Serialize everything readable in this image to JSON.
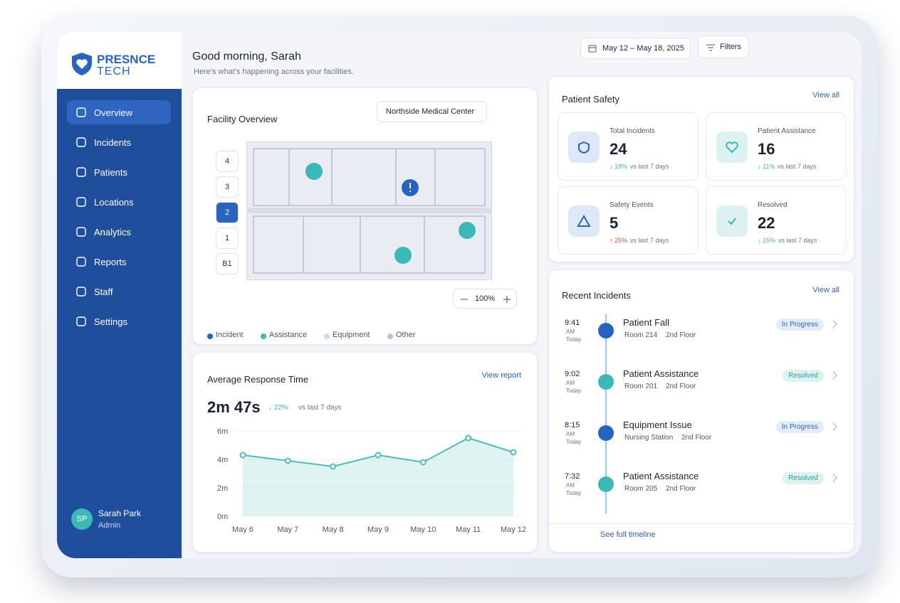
{
  "brand": {
    "name": "PRESNCE",
    "sub": "TECH"
  },
  "nav": [
    "Overview",
    "Incidents",
    "Patients",
    "Locations",
    "Analytics",
    "Reports",
    "Staff",
    "Settings"
  ],
  "nav_active": 0,
  "user": {
    "initials": "SP",
    "name": "Sarah Park",
    "role": "Admin"
  },
  "header": {
    "greeting": "Good morning, Sarah",
    "subtitle": "Here's what's happening across your facilities.",
    "date_range": "May 12 – May 18, 2025",
    "filters": "Filters"
  },
  "facility": {
    "title": "Facility Overview",
    "building": "Northside Medical Center",
    "floors": [
      "4",
      "3",
      "2",
      "1",
      "B1"
    ],
    "active_floor": 2,
    "zoom": "100%",
    "legend": [
      {
        "label": "Incident",
        "color": "#2563c4"
      },
      {
        "label": "Assistance",
        "color": "#3bb9b6"
      },
      {
        "label": "Equipment",
        "color": "#bfe6e6"
      },
      {
        "label": "Other",
        "color": "#b9bfe0"
      }
    ]
  },
  "safety": {
    "title": "Patient Safety",
    "view_all": "View all",
    "cards": [
      {
        "label": "Total Incidents",
        "value": 24,
        "change": "↓ 18%",
        "note": "vs last 7 days",
        "tone": "good",
        "icon": "shield"
      },
      {
        "label": "Patient Assistance",
        "value": 16,
        "change": "↓ 11%",
        "note": "vs last 7 days",
        "tone": "good",
        "icon": "heart"
      },
      {
        "label": "Safety Events",
        "value": 5,
        "change": "↑ 25%",
        "note": "vs last 7 days",
        "tone": "bad",
        "icon": "warn"
      },
      {
        "label": "Resolved",
        "value": 22,
        "change": "↓ 15%",
        "note": "vs last 7 days",
        "tone": "good",
        "icon": "check"
      }
    ]
  },
  "chart_data": {
    "type": "line",
    "title": "Average Response Time",
    "link": "View report",
    "summary": "2m 47s",
    "change": "↓ 22%",
    "change_note": "vs last 7 days",
    "categories": [
      "May 6",
      "May 7",
      "May 8",
      "May 9",
      "May 10",
      "May 11",
      "May 12"
    ],
    "series": [
      {
        "name": "Average Response Time",
        "color": "#4dbdb8",
        "values": [
          4.3,
          3.9,
          3.5,
          4.3,
          3.8,
          5.5,
          4.5
        ]
      }
    ],
    "ylim": [
      0,
      6
    ],
    "yticks": [
      {
        "value": 0,
        "label": "0m"
      },
      {
        "value": 2,
        "label": "2m"
      },
      {
        "value": 4,
        "label": "4m"
      },
      {
        "value": 6,
        "label": "6m"
      }
    ]
  },
  "recent": {
    "title": "Recent Incidents",
    "view_all": "View all",
    "footer": "See full timeline",
    "items": [
      {
        "time": "9:41",
        "ampm": "AM",
        "day": "Today",
        "title": "Patient Fall",
        "room": "Room 214",
        "floor": "2nd Floor",
        "status": "In Progress",
        "kind": "incident"
      },
      {
        "time": "9:02",
        "ampm": "AM",
        "day": "Today",
        "title": "Patient Assistance",
        "room": "Room 201",
        "floor": "2nd Floor",
        "status": "Resolved",
        "kind": "assist"
      },
      {
        "time": "8:15",
        "ampm": "AM",
        "day": "Today",
        "title": "Equipment Issue",
        "room": "Nursing Station",
        "floor": "2nd Floor",
        "status": "In Progress",
        "kind": "incident"
      },
      {
        "time": "7:32",
        "ampm": "AM",
        "day": "Today",
        "title": "Patient Assistance",
        "room": "Room 205",
        "floor": "2nd Floor",
        "status": "Resolved",
        "kind": "assist"
      }
    ]
  }
}
